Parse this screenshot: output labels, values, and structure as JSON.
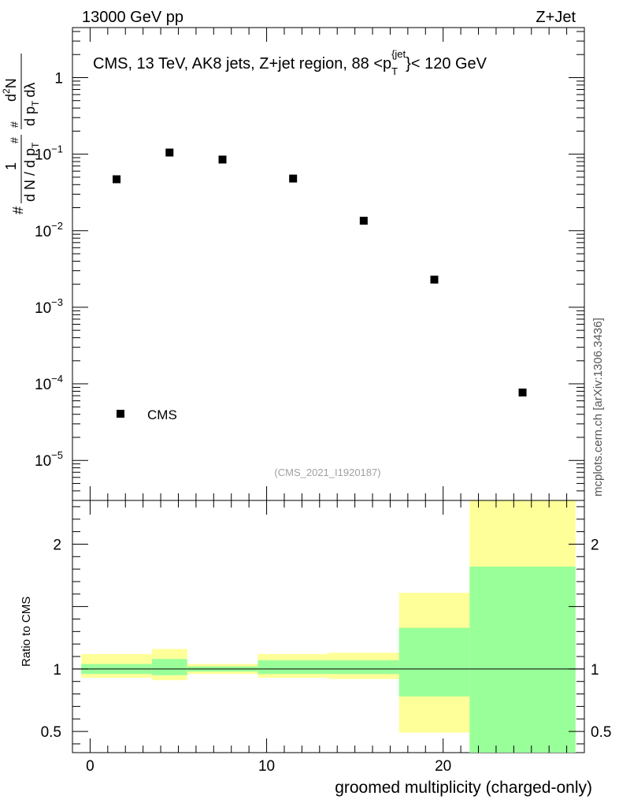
{
  "header": {
    "left": "13000 GeV pp",
    "right": "Z+Jet"
  },
  "chart_data": {
    "type": "scatter",
    "title": "CMS, 13 TeV, AK8 jets, Z+jet region, 88 <p_T^{jet}< 120 GeV",
    "title_parts": {
      "main": "CMS, 13 TeV, AK8 jets, Z+jet region, 88 <p",
      "sub": "T",
      "sup": "{jet",
      "tail": "}< 120 GeV"
    },
    "ylabel": "1/(dN/dp_T) d²N/(dp_T dλ)",
    "ylabel_parts": {
      "pre": "#",
      "frac1_num": "1",
      "frac1_den": "d N / d p",
      "frac1_den_sub": "T",
      "frac1_den_hash": "#",
      "frac2_num": "d",
      "frac2_num_sup": "2",
      "frac2_num_tail": "N",
      "frac2_den": "d p",
      "frac2_den_sub": "T",
      "frac2_den_tail": "dλ",
      "frac2_den_hash": "#"
    },
    "xlabel": "groomed multiplicity (charged-only)",
    "yscale": "log",
    "ylim": [
      3e-06,
      4.5
    ],
    "xlim": [
      -1,
      28
    ],
    "yticks": [
      {
        "value": 1,
        "label": "1",
        "exp": ""
      },
      {
        "value": 0.1,
        "label": "10",
        "exp": "−1"
      },
      {
        "value": 0.01,
        "label": "10",
        "exp": "−2"
      },
      {
        "value": 0.001,
        "label": "10",
        "exp": "−3"
      },
      {
        "value": 0.0001,
        "label": "10",
        "exp": "−4"
      },
      {
        "value": 1e-05,
        "label": "10",
        "exp": "−5"
      }
    ],
    "xticks": [
      {
        "value": 0,
        "label": "0"
      },
      {
        "value": 10,
        "label": "10"
      },
      {
        "value": 20,
        "label": "20"
      }
    ],
    "series": [
      {
        "name": "CMS",
        "color": "#000000",
        "marker": "square",
        "x": [
          1.5,
          4.5,
          7.5,
          11.5,
          15.5,
          19.5,
          24.5
        ],
        "y": [
          0.047,
          0.105,
          0.085,
          0.048,
          0.0135,
          0.0023,
          7.7e-05
        ]
      }
    ],
    "legend": {
      "label": "CMS",
      "position": "bottom-left"
    },
    "watermark": "(CMS_2021_I1920187)",
    "side_text": "mcplots.cern.ch [arXiv:1306.3436]",
    "ratio": {
      "ylabel": "Ratio to CMS",
      "ylim": [
        0.33,
        2.35
      ],
      "yticks": [
        {
          "value": 0.5,
          "label": "0.5"
        },
        {
          "value": 1,
          "label": "1"
        },
        {
          "value": 2,
          "label": "2"
        }
      ],
      "bins": [
        {
          "x0": -0.5,
          "x1": 3.5,
          "band1": [
            0.96,
            1.04
          ],
          "band2": [
            0.93,
            1.12
          ]
        },
        {
          "x0": 3.5,
          "x1": 5.5,
          "band1": [
            0.95,
            1.08
          ],
          "band2": [
            0.91,
            1.16
          ]
        },
        {
          "x0": 5.5,
          "x1": 9.5,
          "band1": [
            0.98,
            1.02
          ],
          "band2": [
            0.96,
            1.04
          ]
        },
        {
          "x0": 9.5,
          "x1": 13.5,
          "band1": [
            0.96,
            1.07
          ],
          "band2": [
            0.93,
            1.12
          ]
        },
        {
          "x0": 13.5,
          "x1": 17.5,
          "band1": [
            0.96,
            1.07
          ],
          "band2": [
            0.92,
            1.13
          ]
        },
        {
          "x0": 17.5,
          "x1": 21.5,
          "band1": [
            0.78,
            1.33
          ],
          "band2": [
            0.49,
            1.61
          ]
        },
        {
          "x0": 21.5,
          "x1": 27.5,
          "band1": [
            0.33,
            1.82
          ],
          "band2": [
            0.33,
            2.35
          ]
        }
      ],
      "band1_color": "#99ff99",
      "band2_color": "#ffff99"
    }
  }
}
